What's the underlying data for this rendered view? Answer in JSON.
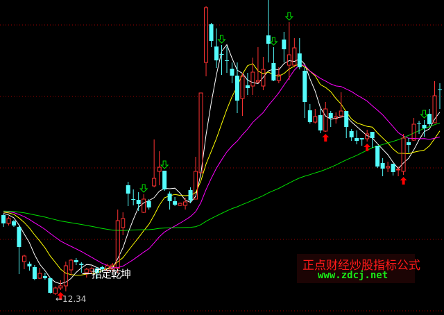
{
  "chart_data": {
    "type": "candlestick",
    "ylim": [
      12.05,
      16.59
    ],
    "grid": true,
    "gridlines": [
      16.23,
      15.2,
      14.17,
      13.14,
      12.11
    ],
    "colors": {
      "up": "#ff3232",
      "down": "#54fcfc",
      "grid": "#a00000",
      "ma5": "#ffffff",
      "ma10": "#ffff00",
      "ma20": "#ff00ff",
      "ma60": "#00e000",
      "buy": "#ff0000",
      "sell": "#00e000"
    },
    "moving_average_periods": [
      5,
      10,
      20,
      60
    ],
    "ohlc": [
      [
        13.49,
        13.51,
        13.32,
        13.37
      ],
      [
        13.37,
        13.47,
        13.34,
        13.44
      ],
      [
        13.4,
        13.42,
        13.32,
        13.34
      ],
      [
        13.32,
        13.34,
        12.64,
        13.03
      ],
      [
        12.82,
        12.92,
        12.71,
        12.9
      ],
      [
        12.79,
        12.82,
        12.69,
        12.75
      ],
      [
        12.74,
        12.77,
        12.55,
        12.57
      ],
      [
        12.58,
        12.73,
        12.57,
        12.65
      ],
      [
        12.61,
        12.66,
        12.56,
        12.58
      ],
      [
        12.58,
        12.59,
        12.36,
        12.37
      ],
      [
        12.36,
        12.46,
        12.34,
        12.44
      ],
      [
        12.44,
        12.55,
        12.41,
        12.47
      ],
      [
        12.47,
        12.82,
        12.39,
        12.76
      ],
      [
        12.7,
        12.86,
        12.62,
        12.84
      ],
      [
        12.84,
        12.87,
        12.77,
        12.81
      ],
      [
        12.79,
        12.81,
        12.66,
        12.77
      ],
      [
        12.66,
        12.73,
        12.59,
        12.71
      ],
      [
        12.68,
        12.75,
        12.64,
        12.72
      ],
      [
        12.72,
        12.74,
        12.57,
        12.66
      ],
      [
        12.74,
        12.76,
        12.67,
        12.71
      ],
      [
        12.69,
        12.79,
        12.66,
        12.76
      ],
      [
        12.71,
        12.8,
        12.67,
        12.77
      ],
      [
        12.72,
        13.57,
        12.66,
        13.41
      ],
      [
        13.31,
        13.53,
        13.2,
        13.44
      ],
      [
        13.92,
        13.97,
        13.62,
        13.8
      ],
      [
        13.72,
        13.86,
        13.63,
        13.72
      ],
      [
        13.71,
        13.82,
        13.55,
        13.65
      ],
      [
        13.53,
        13.79,
        13.52,
        13.72
      ],
      [
        13.69,
        13.72,
        13.57,
        13.6
      ],
      [
        13.91,
        14.58,
        13.89,
        14.02
      ],
      [
        14.12,
        14.41,
        13.92,
        14.18
      ],
      [
        14.13,
        14.13,
        13.84,
        13.86
      ],
      [
        13.8,
        13.83,
        13.57,
        13.69
      ],
      [
        13.69,
        13.75,
        13.62,
        13.64
      ],
      [
        13.63,
        13.67,
        13.62,
        13.66
      ],
      [
        13.63,
        13.74,
        13.57,
        13.68
      ],
      [
        13.85,
        13.89,
        13.66,
        13.7
      ],
      [
        13.72,
        14.33,
        13.72,
        14.12
      ],
      [
        14.1,
        15.25,
        14.1,
        15.25
      ],
      [
        15.69,
        16.5,
        15.49,
        16.48
      ],
      [
        16.24,
        16.26,
        15.91,
        16.0
      ],
      [
        15.92,
        16.18,
        15.61,
        15.72
      ],
      [
        15.81,
        15.94,
        15.51,
        15.81
      ],
      [
        15.72,
        15.92,
        15.54,
        15.72
      ],
      [
        15.6,
        15.69,
        15.39,
        15.5
      ],
      [
        15.5,
        15.69,
        14.96,
        15.14
      ],
      [
        15.17,
        15.54,
        14.92,
        15.49
      ],
      [
        15.36,
        15.54,
        15.22,
        15.32
      ],
      [
        15.35,
        15.76,
        15.22,
        15.55
      ],
      [
        15.41,
        15.91,
        15.39,
        15.43
      ],
      [
        15.35,
        15.77,
        15.29,
        15.59
      ],
      [
        16.08,
        16.59,
        15.69,
        15.96
      ],
      [
        15.68,
        15.91,
        15.42,
        15.43
      ],
      [
        15.43,
        15.62,
        15.39,
        15.51
      ],
      [
        16.02,
        16.13,
        15.69,
        15.88
      ],
      [
        15.65,
        16.27,
        15.44,
        15.8
      ],
      [
        15.65,
        16.04,
        15.62,
        15.9
      ],
      [
        15.82,
        16.04,
        15.59,
        15.62
      ],
      [
        15.57,
        15.62,
        14.89,
        15.12
      ],
      [
        15.0,
        15.09,
        14.81,
        14.83
      ],
      [
        14.83,
        15.02,
        14.81,
        14.91
      ],
      [
        14.93,
        15.02,
        14.67,
        14.71
      ],
      [
        14.7,
        15.12,
        14.69,
        15.02
      ],
      [
        14.96,
        14.99,
        14.76,
        14.89
      ],
      [
        14.88,
        14.97,
        14.81,
        14.91
      ],
      [
        14.92,
        15.26,
        14.89,
        14.99
      ],
      [
        14.99,
        14.99,
        14.6,
        14.76
      ],
      [
        14.7,
        14.73,
        14.56,
        14.61
      ],
      [
        14.6,
        14.71,
        14.51,
        14.56
      ],
      [
        14.6,
        14.6,
        14.49,
        14.58
      ],
      [
        14.59,
        14.72,
        14.55,
        14.66
      ],
      [
        14.69,
        14.69,
        14.46,
        14.6
      ],
      [
        14.49,
        14.49,
        14.17,
        14.19
      ],
      [
        14.24,
        14.31,
        14.05,
        14.16
      ],
      [
        14.17,
        14.26,
        14.11,
        14.19
      ],
      [
        14.23,
        14.23,
        14.06,
        14.11
      ],
      [
        14.14,
        14.19,
        14.05,
        14.15
      ],
      [
        14.12,
        14.66,
        14.07,
        14.6
      ],
      [
        14.54,
        14.6,
        14.39,
        14.5
      ],
      [
        14.57,
        14.89,
        14.56,
        14.8
      ],
      [
        14.82,
        14.85,
        14.66,
        14.82
      ],
      [
        14.79,
        14.86,
        14.62,
        14.74
      ],
      [
        14.95,
        15.02,
        14.77,
        14.8
      ],
      [
        14.82,
        15.42,
        14.82,
        15.21
      ],
      [
        15.3,
        15.39,
        15.02,
        15.3
      ]
    ],
    "buy_signal_indices": [
      11,
      62,
      70,
      77
    ],
    "sell_signal_indices": [
      27,
      31,
      42,
      52,
      55,
      81
    ],
    "annotations": {
      "signal_text": "一招定乾坤",
      "low_marker": "←12.34",
      "low_value": 12.34
    }
  },
  "watermark": {
    "title": "正点财经炒股指标公式",
    "url": "www.zdcj.net"
  }
}
